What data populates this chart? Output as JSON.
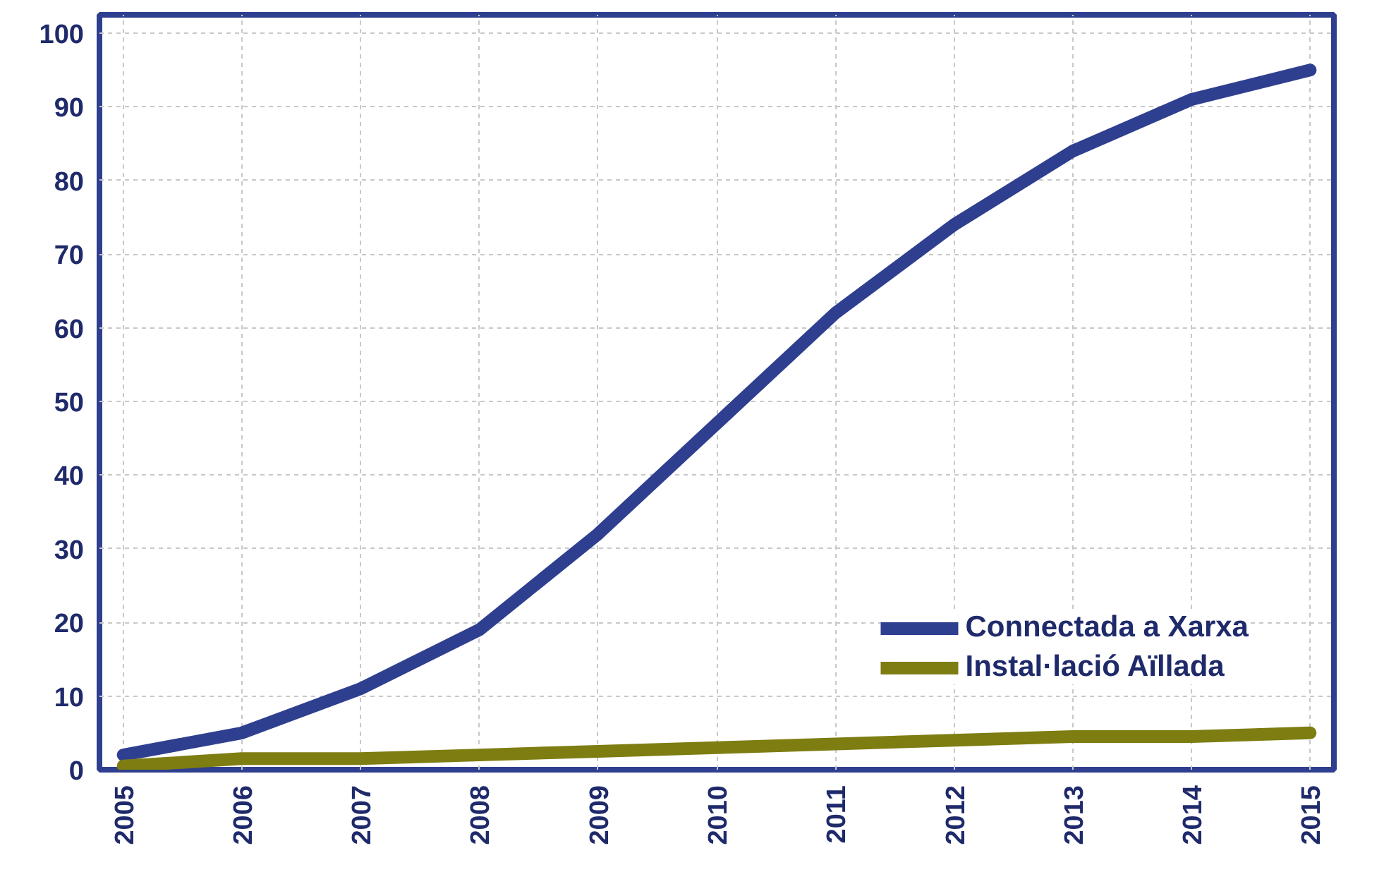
{
  "chart_data": {
    "type": "line",
    "x": [
      2005,
      2006,
      2007,
      2008,
      2009,
      2010,
      2011,
      2012,
      2013,
      2014,
      2015
    ],
    "series": [
      {
        "name": "Connectada a Xarxa",
        "color": "#2f3f8f",
        "values": [
          2,
          5,
          11,
          19,
          32,
          47,
          62,
          74,
          84,
          91,
          95
        ]
      },
      {
        "name": "Instal·lació Aïllada",
        "color": "#7d7d12",
        "values": [
          0.5,
          1.5,
          1.5,
          2,
          2.5,
          3,
          3.5,
          4,
          4.5,
          4.5,
          5
        ]
      }
    ],
    "xlim": [
      2004.8,
      2015.2
    ],
    "xticks": [
      2005,
      2006,
      2007,
      2008,
      2009,
      2010,
      2011,
      2012,
      2013,
      2014,
      2015
    ],
    "ylim": [
      0,
      102.5
    ],
    "yticks": [
      0,
      10,
      20,
      30,
      40,
      50,
      60,
      70,
      80,
      90,
      100
    ],
    "grid": true,
    "legend": "bottom right",
    "line_style": "solid",
    "marker": "none"
  }
}
